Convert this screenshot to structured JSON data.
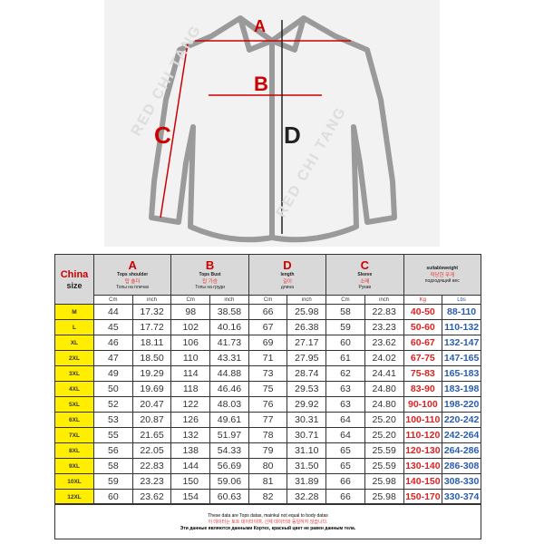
{
  "watermark": "RED CHI TANG",
  "diagram_labels": {
    "a": "A",
    "b": "B",
    "c": "C",
    "d": "D"
  },
  "header": {
    "china": "China",
    "size": "size",
    "groups": [
      {
        "letter": "A",
        "en": "Tops shoulder",
        "ko": "탑 숄더",
        "ru": "Топы на плечах"
      },
      {
        "letter": "B",
        "en": "Tops Bust",
        "ko": "탑 가슴",
        "ru": "Топы на груди"
      },
      {
        "letter": "D",
        "en": "length",
        "ko": "길이",
        "ru": "длина"
      },
      {
        "letter": "C",
        "en": "Sleeve",
        "ko": "소매",
        "ru": "Рукав"
      },
      {
        "letter": "",
        "en": "suitableweight",
        "ko": "적당한 무게",
        "ru": "подходящий вес"
      }
    ],
    "units": [
      "Cm",
      "inch",
      "Cm",
      "inch",
      "Cm",
      "inch",
      "Cm",
      "inch",
      "Kg",
      "Lbs"
    ]
  },
  "rows": [
    [
      "M",
      "44",
      "17.32",
      "98",
      "38.58",
      "66",
      "25.98",
      "58",
      "22.83",
      "40-50",
      "88-110"
    ],
    [
      "L",
      "45",
      "17.72",
      "102",
      "40.16",
      "67",
      "26.38",
      "59",
      "23.23",
      "50-60",
      "110-132"
    ],
    [
      "XL",
      "46",
      "18.11",
      "106",
      "41.73",
      "69",
      "27.17",
      "60",
      "23.62",
      "60-67",
      "132-147"
    ],
    [
      "2XL",
      "47",
      "18.50",
      "110",
      "43.31",
      "71",
      "27.95",
      "61",
      "24.02",
      "67-75",
      "147-165"
    ],
    [
      "3XL",
      "49",
      "19.29",
      "114",
      "44.88",
      "73",
      "28.74",
      "62",
      "24.41",
      "75-83",
      "165-183"
    ],
    [
      "4XL",
      "50",
      "19.69",
      "118",
      "46.46",
      "75",
      "29.53",
      "63",
      "24.80",
      "83-90",
      "183-198"
    ],
    [
      "5XL",
      "52",
      "20.47",
      "122",
      "48.03",
      "76",
      "29.92",
      "63",
      "24.80",
      "90-100",
      "198-220"
    ],
    [
      "6XL",
      "53",
      "20.87",
      "126",
      "49.61",
      "77",
      "30.31",
      "64",
      "25.20",
      "100-110",
      "220-242"
    ],
    [
      "7XL",
      "55",
      "21.65",
      "132",
      "51.97",
      "78",
      "30.71",
      "64",
      "25.20",
      "110-120",
      "242-264"
    ],
    [
      "8XL",
      "56",
      "22.05",
      "138",
      "54.33",
      "79",
      "31.10",
      "65",
      "25.59",
      "120-130",
      "264-286"
    ],
    [
      "9XL",
      "58",
      "22.83",
      "144",
      "56.69",
      "80",
      "31.50",
      "65",
      "25.59",
      "130-140",
      "286-308"
    ],
    [
      "10XL",
      "59",
      "23.23",
      "150",
      "59.06",
      "81",
      "31.89",
      "66",
      "25.98",
      "140-150",
      "308-330"
    ],
    [
      "12XL",
      "60",
      "23.62",
      "154",
      "60.63",
      "82",
      "32.28",
      "66",
      "25.98",
      "150-170",
      "330-374"
    ]
  ],
  "footer": [
    "These data are Tops datas, mainkul not equal to body datas",
    "이 데이터는 토트 데이터이며, 신체 데이터와 동일하지 않습니다.",
    "Эти данные являются данными Кортех, красный цвет не равен данным тела."
  ],
  "colors": {
    "accent_red": "#cc0000",
    "size_bg": "#ffee00",
    "header_bg": "#d9d9d9",
    "lbs_blue": "#2a5db0"
  }
}
